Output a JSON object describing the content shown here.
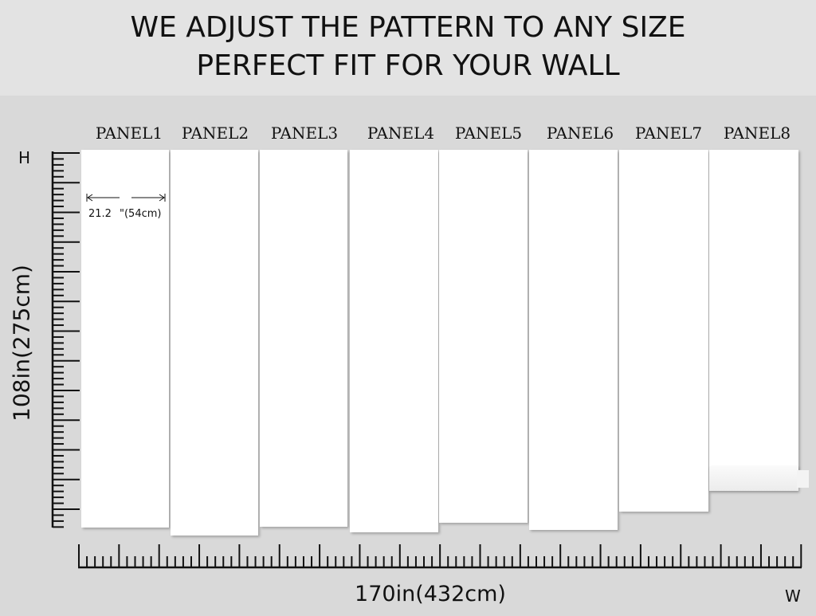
{
  "headline": {
    "line1": "WE ADJUST THE PATTERN TO ANY SIZE",
    "line2": "PERFECT FIT FOR YOUR WALL"
  },
  "panels": [
    "PANEL1",
    "PANEL2",
    "PANEL3",
    "PANEL4",
    "PANEL5",
    "PANEL6",
    "PANEL7",
    "PANEL8"
  ],
  "panel_width": {
    "inches": "21.2",
    "rest": "\"(54cm)"
  },
  "height_axis": {
    "letter": "H",
    "label": "108in(275cm)"
  },
  "width_axis": {
    "letter": "W",
    "label": "170in(432cm)"
  }
}
